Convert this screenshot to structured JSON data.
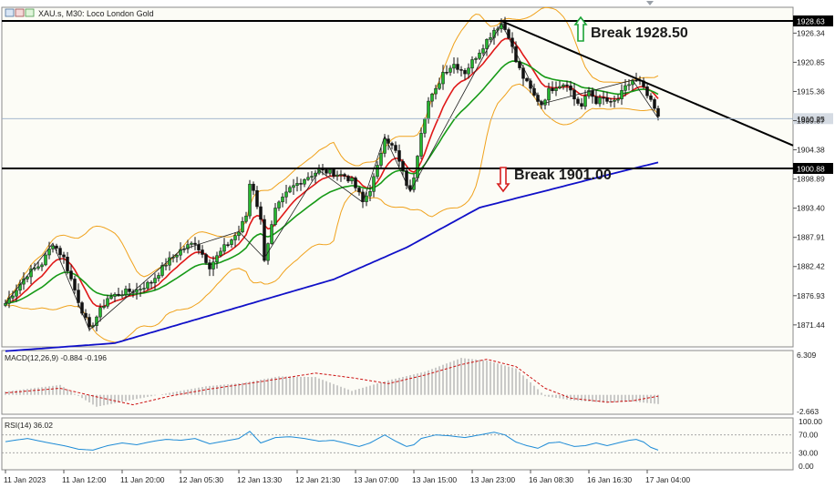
{
  "header": {
    "symbol": "XAUs",
    "timeframe": "M30",
    "description": "Loco London Gold",
    "title": "XAU.s, M30: Loco London Gold"
  },
  "colors": {
    "background": "#fcfcf6",
    "bull": "#25b52f",
    "bear": "#111111",
    "bb": "#f0a21c",
    "ma_red": "#e01818",
    "ma_green": "#179a17",
    "ma_blue": "#1010c8",
    "macd_hist": "#b4b4b4",
    "macd_signal": "#cc1111",
    "rsi": "#1e8bd6",
    "break_up": "#1aa335",
    "break_down": "#d61f1f"
  },
  "price_axis": {
    "ticks": [
      "1926.34",
      "1920.85",
      "1915.36",
      "1909.87",
      "1904.38",
      "1898.89",
      "1893.40",
      "1887.91",
      "1882.42",
      "1876.93",
      "1871.44"
    ],
    "tick_values": [
      1926.34,
      1920.85,
      1915.36,
      1909.87,
      1904.38,
      1898.89,
      1893.4,
      1887.91,
      1882.42,
      1876.93,
      1871.44
    ],
    "min": 1867.3,
    "max": 1931.2
  },
  "time_axis": {
    "labels": [
      "11 Jan 2023",
      "11 Jan 12:00",
      "11 Jan 20:00",
      "12 Jan 05:30",
      "12 Jan 13:30",
      "12 Jan 21:30",
      "13 Jan 07:00",
      "13 Jan 15:00",
      "13 Jan 23:00",
      "16 Jan 08:30",
      "16 Jan 16:30",
      "17 Jan 04:00"
    ],
    "label_index": [
      0,
      16,
      32,
      48,
      64,
      80,
      96,
      112,
      128,
      144,
      160,
      176
    ]
  },
  "levels": [
    {
      "name": "resistance",
      "value": 1928.63,
      "label": "1928.63"
    },
    {
      "name": "support",
      "value": 1900.88,
      "label": "1900.88"
    }
  ],
  "current_price": {
    "value": 1910.25,
    "label": "1910.25"
  },
  "annotations": {
    "break_up": "Break 1928.50",
    "break_down": "Break 1901.00"
  },
  "trendline": {
    "from": {
      "index": 136,
      "price": 1928.63
    },
    "to": {
      "index": 216,
      "price": 1905.2
    }
  },
  "chart_data": {
    "type": "candlestick",
    "title": "XAU.s, M30: Loco London Gold",
    "ylim": [
      1867.3,
      1931.2
    ],
    "waypoints": [
      [
        0,
        1875.5
      ],
      [
        6,
        1881
      ],
      [
        10,
        1883
      ],
      [
        13,
        1886.8
      ],
      [
        16,
        1884
      ],
      [
        18,
        1880
      ],
      [
        20,
        1876
      ],
      [
        23,
        1870.5
      ],
      [
        25,
        1873
      ],
      [
        28,
        1876.5
      ],
      [
        32,
        1877.5
      ],
      [
        36,
        1878
      ],
      [
        40,
        1879.5
      ],
      [
        44,
        1883
      ],
      [
        48,
        1885.5
      ],
      [
        52,
        1887
      ],
      [
        56,
        1882.5
      ],
      [
        60,
        1886
      ],
      [
        64,
        1889
      ],
      [
        66,
        1892
      ],
      [
        67,
        1898
      ],
      [
        68,
        1897
      ],
      [
        70,
        1891
      ],
      [
        71,
        1884
      ],
      [
        74,
        1893
      ],
      [
        78,
        1897
      ],
      [
        82,
        1899
      ],
      [
        86,
        1900.5
      ],
      [
        90,
        1900
      ],
      [
        93,
        1899.5
      ],
      [
        95,
        1898.5
      ],
      [
        97,
        1896
      ],
      [
        98,
        1894.5
      ],
      [
        100,
        1897
      ],
      [
        102,
        1901
      ],
      [
        104,
        1907
      ],
      [
        107,
        1904
      ],
      [
        110,
        1898
      ],
      [
        111,
        1896.5
      ],
      [
        112,
        1899.5
      ],
      [
        114,
        1908
      ],
      [
        116,
        1913.5
      ],
      [
        118,
        1915.5
      ],
      [
        120,
        1919
      ],
      [
        123,
        1920.5
      ],
      [
        126,
        1919
      ],
      [
        128,
        1921
      ],
      [
        131,
        1924
      ],
      [
        134,
        1927
      ],
      [
        136,
        1928.2
      ],
      [
        138,
        1926
      ],
      [
        140,
        1921
      ],
      [
        142,
        1918
      ],
      [
        145,
        1914.5
      ],
      [
        147,
        1913
      ],
      [
        149,
        1915.5
      ],
      [
        151,
        1916.5
      ],
      [
        154,
        1917
      ],
      [
        156,
        1914
      ],
      [
        158,
        1912.5
      ],
      [
        160,
        1915.5
      ],
      [
        162,
        1913.5
      ],
      [
        164,
        1914
      ],
      [
        166,
        1913
      ],
      [
        168,
        1914
      ],
      [
        170,
        1916
      ],
      [
        172,
        1917.5
      ],
      [
        174,
        1917
      ],
      [
        176,
        1914.5
      ],
      [
        178,
        1912
      ],
      [
        179,
        1910.3
      ]
    ],
    "ma_slow_waypoints": [
      [
        0,
        1866.5
      ],
      [
        30,
        1868
      ],
      [
        60,
        1874
      ],
      [
        90,
        1880
      ],
      [
        110,
        1886
      ],
      [
        130,
        1893.5
      ],
      [
        150,
        1897
      ],
      [
        170,
        1900.5
      ],
      [
        179,
        1902
      ]
    ],
    "macd": {
      "label": "MACD(12,26,9) -0.884 -0.196",
      "scale_top": "6.309",
      "scale_bottom": "-2.663",
      "ylim": [
        -2.663,
        6.309
      ],
      "histogram_waypoints": [
        [
          0,
          0.5
        ],
        [
          15,
          1.5
        ],
        [
          25,
          -1.8
        ],
        [
          40,
          -0.2
        ],
        [
          55,
          1.3
        ],
        [
          65,
          1.8
        ],
        [
          75,
          2.8
        ],
        [
          85,
          2.7
        ],
        [
          95,
          0.6
        ],
        [
          105,
          2.2
        ],
        [
          115,
          3.5
        ],
        [
          125,
          5.6
        ],
        [
          132,
          5.2
        ],
        [
          140,
          4.0
        ],
        [
          148,
          -0.2
        ],
        [
          155,
          -0.8
        ],
        [
          165,
          -1.2
        ],
        [
          172,
          -1.0
        ],
        [
          179,
          -1.4
        ]
      ],
      "signal_waypoints": [
        [
          0,
          0.3
        ],
        [
          15,
          1.0
        ],
        [
          25,
          -0.3
        ],
        [
          35,
          -1.5
        ],
        [
          45,
          -0.2
        ],
        [
          55,
          0.8
        ],
        [
          70,
          2.0
        ],
        [
          85,
          3.3
        ],
        [
          95,
          2.6
        ],
        [
          105,
          1.7
        ],
        [
          115,
          3.0
        ],
        [
          125,
          4.6
        ],
        [
          132,
          5.4
        ],
        [
          140,
          4.3
        ],
        [
          148,
          1.0
        ],
        [
          155,
          -0.5
        ],
        [
          165,
          -1.1
        ],
        [
          172,
          -0.9
        ],
        [
          179,
          -0.196
        ]
      ]
    },
    "rsi": {
      "label": "RSI(14) 36.02",
      "ticks": [
        "100.00",
        "70.00",
        "30.00",
        "0.00"
      ],
      "tick_values": [
        100,
        70,
        30,
        0
      ],
      "ylim": [
        0,
        100
      ],
      "waypoints": [
        [
          0,
          55
        ],
        [
          6,
          62
        ],
        [
          12,
          52
        ],
        [
          16,
          46
        ],
        [
          20,
          38
        ],
        [
          24,
          36
        ],
        [
          28,
          46
        ],
        [
          32,
          52
        ],
        [
          36,
          48
        ],
        [
          40,
          55
        ],
        [
          44,
          60
        ],
        [
          48,
          58
        ],
        [
          52,
          62
        ],
        [
          56,
          50
        ],
        [
          60,
          56
        ],
        [
          64,
          62
        ],
        [
          67,
          78
        ],
        [
          70,
          52
        ],
        [
          74,
          64
        ],
        [
          78,
          66
        ],
        [
          82,
          62
        ],
        [
          86,
          56
        ],
        [
          90,
          58
        ],
        [
          94,
          50
        ],
        [
          97,
          44
        ],
        [
          100,
          52
        ],
        [
          104,
          70
        ],
        [
          107,
          56
        ],
        [
          110,
          44
        ],
        [
          112,
          48
        ],
        [
          114,
          62
        ],
        [
          118,
          70
        ],
        [
          122,
          68
        ],
        [
          126,
          64
        ],
        [
          130,
          70
        ],
        [
          134,
          76
        ],
        [
          137,
          70
        ],
        [
          140,
          54
        ],
        [
          143,
          46
        ],
        [
          146,
          40
        ],
        [
          149,
          52
        ],
        [
          152,
          54
        ],
        [
          156,
          44
        ],
        [
          159,
          46
        ],
        [
          162,
          52
        ],
        [
          165,
          46
        ],
        [
          168,
          52
        ],
        [
          171,
          58
        ],
        [
          173,
          60
        ],
        [
          175,
          54
        ],
        [
          177,
          42
        ],
        [
          179,
          36
        ]
      ]
    },
    "bollinger_period": 20
  }
}
